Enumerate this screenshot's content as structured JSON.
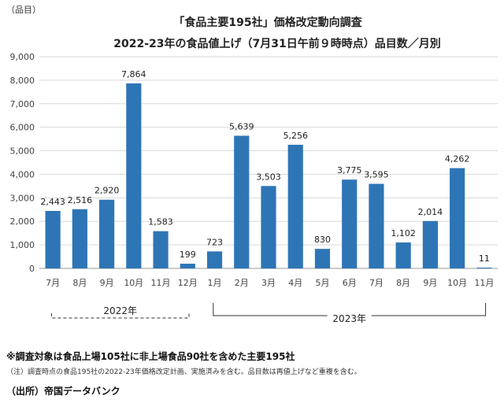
{
  "chart_data": {
    "type": "bar",
    "title": "「食品主要195社」価格改定動向調査",
    "subtitle": "2022-23年の食品値上げ（7月31日午前９時時点）品目数／月別",
    "unit_label": "（品目）",
    "categories": [
      "7月",
      "8月",
      "9月",
      "10月",
      "11月",
      "12月",
      "1月",
      "2月",
      "3月",
      "4月",
      "5月",
      "6月",
      "7月",
      "8月",
      "9月",
      "10月",
      "11月"
    ],
    "values": [
      2443,
      2516,
      2920,
      7864,
      1583,
      199,
      723,
      5639,
      3503,
      5256,
      830,
      3775,
      3595,
      1102,
      2014,
      4262,
      11
    ],
    "value_labels": [
      "2,443",
      "2,516",
      "2,920",
      "7,864",
      "1,583",
      "199",
      "723",
      "5,639",
      "3,503",
      "5,256",
      "830",
      "3,775",
      "3,595",
      "1,102",
      "2,014",
      "4,262",
      "11"
    ],
    "ylim": [
      0,
      9000
    ],
    "yticks": [
      0,
      1000,
      2000,
      3000,
      4000,
      5000,
      6000,
      7000,
      8000,
      9000
    ],
    "ytick_labels": [
      "0",
      "1,000",
      "2,000",
      "3,000",
      "4,000",
      "5,000",
      "6,000",
      "7,000",
      "8,000",
      "9,000"
    ],
    "groups": [
      {
        "label": "2022年",
        "start": 0,
        "end": 5
      },
      {
        "label": "2023年",
        "start": 6,
        "end": 16
      }
    ],
    "bar_color": "#2e75b6",
    "grid": true
  },
  "notes": {
    "main": "※調査対象は食品上場105社に非上場食品90社を含めた主要195社",
    "sub": "（注）調査時点の食品195社の2022-23年価格改定計画、実施済みを含む。品目数は再値上げなど重複を含む。",
    "source": "（出所）帝国データバンク"
  }
}
